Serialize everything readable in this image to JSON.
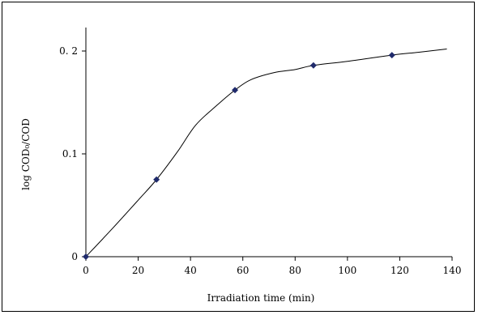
{
  "chart_data": {
    "type": "line",
    "title": "",
    "xlabel": "Irradiation time (min)",
    "ylabel": "log COD₀/COD",
    "xlim": [
      0,
      140
    ],
    "ylim": [
      0,
      0.2
    ],
    "x_ticks": [
      0,
      20,
      40,
      60,
      80,
      100,
      120,
      140
    ],
    "y_ticks": [
      {
        "value": 0,
        "label": "0"
      },
      {
        "value": 0.1,
        "label": "0.1"
      },
      {
        "value": 0.2,
        "label": "0. 2"
      }
    ],
    "grid": false,
    "legend": "none",
    "series": [
      {
        "points": [
          {
            "x": 0,
            "y": 0
          },
          {
            "x": 27,
            "y": 0.075
          },
          {
            "x": 57,
            "y": 0.162
          },
          {
            "x": 87,
            "y": 0.186
          },
          {
            "x": 117,
            "y": 0.196
          }
        ],
        "marker_color": "#1f2a6b",
        "line_color": "#000000"
      }
    ],
    "trend_curve": [
      {
        "x": 0,
        "y": 0
      },
      {
        "x": 10,
        "y": 0.027
      },
      {
        "x": 20,
        "y": 0.055
      },
      {
        "x": 27,
        "y": 0.075
      },
      {
        "x": 35,
        "y": 0.102
      },
      {
        "x": 42,
        "y": 0.128
      },
      {
        "x": 50,
        "y": 0.147
      },
      {
        "x": 57,
        "y": 0.162
      },
      {
        "x": 63,
        "y": 0.172
      },
      {
        "x": 72,
        "y": 0.179
      },
      {
        "x": 80,
        "y": 0.182
      },
      {
        "x": 87,
        "y": 0.186
      },
      {
        "x": 100,
        "y": 0.19
      },
      {
        "x": 117,
        "y": 0.196
      },
      {
        "x": 128,
        "y": 0.199
      },
      {
        "x": 138,
        "y": 0.202
      }
    ]
  }
}
